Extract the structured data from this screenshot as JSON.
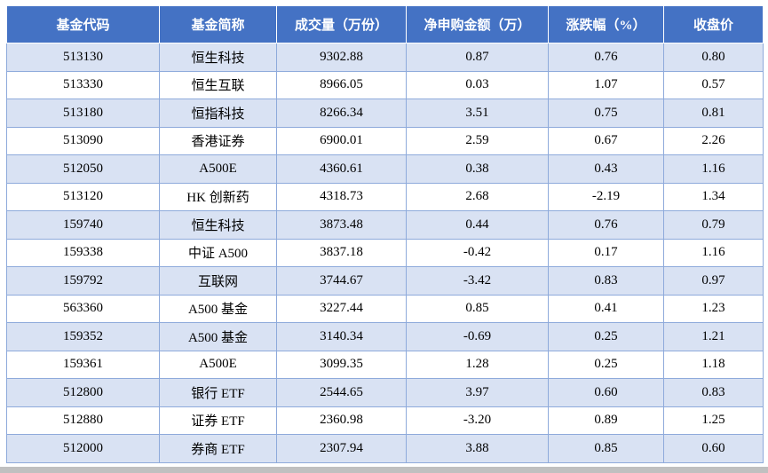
{
  "chart_data": {
    "type": "table",
    "columns": [
      "基金代码",
      "基金简称",
      "成交量（万份）",
      "净申购金额（万）",
      "涨跌幅（%）",
      "收盘价"
    ],
    "rows": [
      [
        "513130",
        "恒生科技",
        "9302.88",
        "0.87",
        "0.76",
        "0.80"
      ],
      [
        "513330",
        "恒生互联",
        "8966.05",
        "0.03",
        "1.07",
        "0.57"
      ],
      [
        "513180",
        "恒指科技",
        "8266.34",
        "3.51",
        "0.75",
        "0.81"
      ],
      [
        "513090",
        "香港证券",
        "6900.01",
        "2.59",
        "0.67",
        "2.26"
      ],
      [
        "512050",
        "A500E",
        "4360.61",
        "0.38",
        "0.43",
        "1.16"
      ],
      [
        "513120",
        "HK 创新药",
        "4318.73",
        "2.68",
        "-2.19",
        "1.34"
      ],
      [
        "159740",
        "恒生科技",
        "3873.48",
        "0.44",
        "0.76",
        "0.79"
      ],
      [
        "159338",
        "中证 A500",
        "3837.18",
        "-0.42",
        "0.17",
        "1.16"
      ],
      [
        "159792",
        "互联网",
        "3744.67",
        "-3.42",
        "0.83",
        "0.97"
      ],
      [
        "563360",
        "A500 基金",
        "3227.44",
        "0.85",
        "0.41",
        "1.23"
      ],
      [
        "159352",
        "A500 基金",
        "3140.34",
        "-0.69",
        "0.25",
        "1.21"
      ],
      [
        "159361",
        "A500E",
        "3099.35",
        "1.28",
        "0.25",
        "1.18"
      ],
      [
        "512800",
        "银行 ETF",
        "2544.65",
        "3.97",
        "0.60",
        "0.83"
      ],
      [
        "512880",
        "证券 ETF",
        "2360.98",
        "-3.20",
        "0.89",
        "1.25"
      ],
      [
        "512000",
        "券商 ETF",
        "2307.94",
        "3.88",
        "0.85",
        "0.60"
      ]
    ],
    "layout": {
      "banded_rows": true,
      "first_body_row_banded": true,
      "header_style": "solid-fill"
    }
  },
  "colors": {
    "header_bg": "#4472C4",
    "header_text": "#FFFFFF",
    "band_row_bg": "#D9E2F3",
    "plain_row_bg": "#FFFFFF",
    "grid_border": "#8EAADB",
    "body_text": "#000000",
    "bottom_bar": "#C0C0C0"
  }
}
